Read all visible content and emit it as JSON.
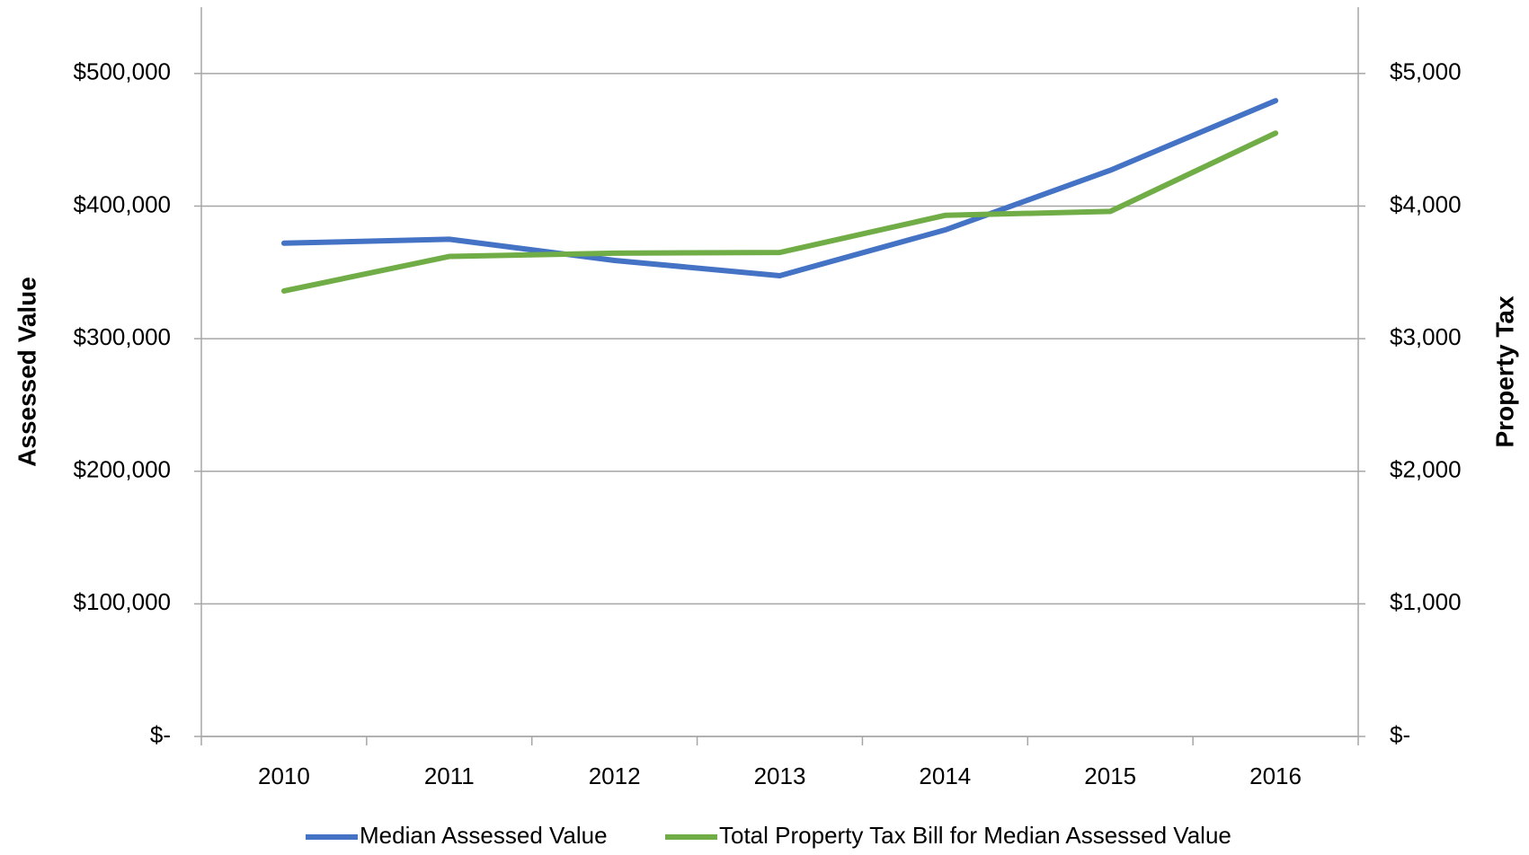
{
  "chart_data": {
    "type": "line",
    "categories": [
      "2010",
      "2011",
      "2012",
      "2013",
      "2014",
      "2015",
      "2016"
    ],
    "series": [
      {
        "name": "Median Assessed Value",
        "color": "#4472c4",
        "values": [
          372000,
          375000,
          359000,
          347500,
          382000,
          427000,
          479500
        ]
      },
      {
        "name": "Total Property Tax Bill for Median Assessed Value",
        "color": "#70ad47",
        "axis": "y2",
        "values": [
          3360,
          3620,
          3645,
          3650,
          3930,
          3960,
          4550
        ]
      }
    ],
    "ylabel": "Assessed Value",
    "y2label": "Property Tax",
    "ylim": [
      0,
      550000
    ],
    "yticks": [
      {
        "value": 0,
        "label": "$-"
      },
      {
        "value": 100000,
        "label": "$100,000"
      },
      {
        "value": 200000,
        "label": "$200,000"
      },
      {
        "value": 300000,
        "label": "$300,000"
      },
      {
        "value": 400000,
        "label": "$400,000"
      },
      {
        "value": 500000,
        "label": "$500,000"
      }
    ],
    "y2lim": [
      0,
      5500
    ],
    "y2ticks": [
      {
        "value": 0,
        "label": "$-"
      },
      {
        "value": 1000,
        "label": "$1,000"
      },
      {
        "value": 2000,
        "label": "$2,000"
      },
      {
        "value": 3000,
        "label": "$3,000"
      },
      {
        "value": 4000,
        "label": "$4,000"
      },
      {
        "value": 5000,
        "label": "$5,000"
      }
    ],
    "grid": true,
    "legend": "bottom"
  }
}
